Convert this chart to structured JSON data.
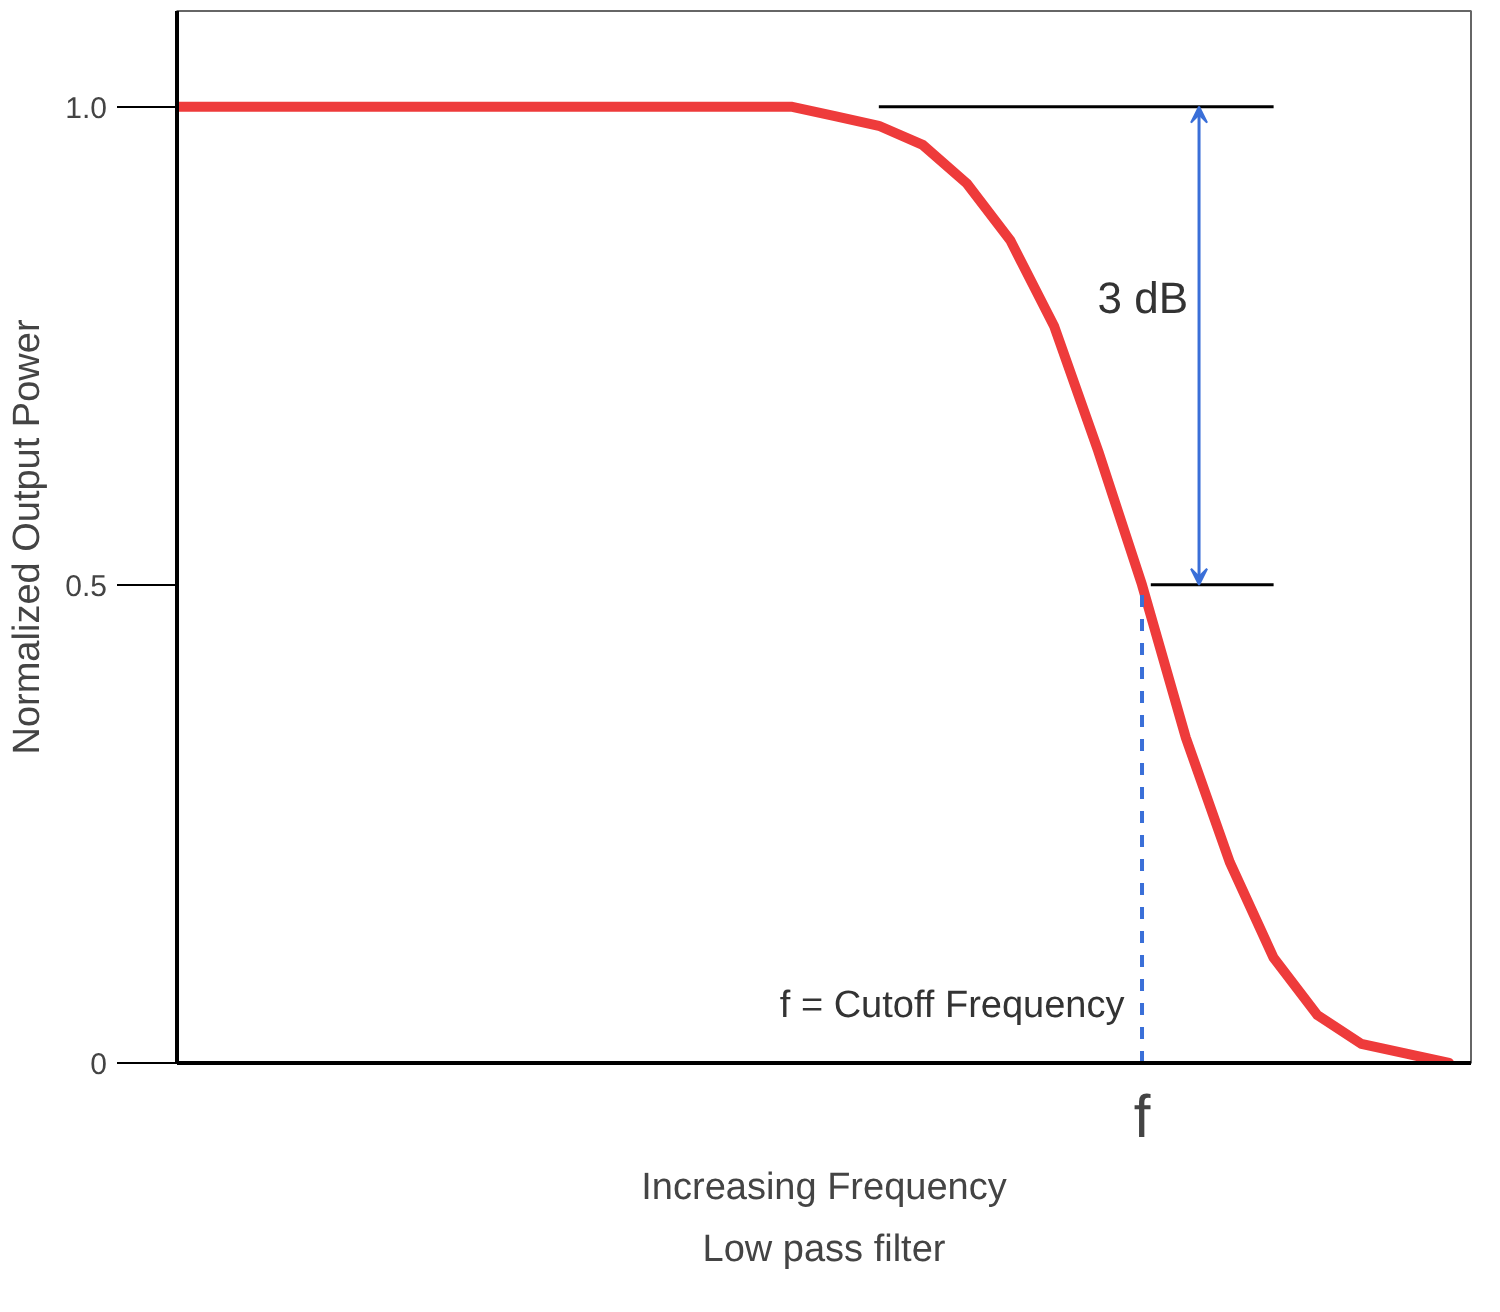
{
  "chart_data": {
    "type": "line",
    "title": "Low pass filter",
    "xlabel": "Increasing Frequency",
    "ylabel": "Normalized Output Power",
    "categories": [
      null,
      null,
      null,
      null,
      null,
      null,
      null,
      null,
      null,
      null,
      null,
      null,
      null,
      null,
      null,
      null,
      null,
      null,
      null,
      null,
      null,
      null,
      "f",
      null,
      null,
      null,
      null,
      null,
      null,
      null
    ],
    "series": [
      {
        "color": "#ee3b3b",
        "values": [
          1,
          1,
          1,
          1,
          1,
          1,
          1,
          1,
          1,
          1,
          1,
          1,
          1,
          1,
          1,
          0.99,
          0.98,
          0.96,
          0.92,
          0.86,
          0.77,
          0.64,
          0.5,
          0.34,
          0.21,
          0.11,
          0.05,
          0.02,
          0.01,
          0
        ]
      }
    ],
    "ylim": [
      0,
      1.1
    ],
    "yticks": [
      0,
      0.5,
      {
        "value": 1,
        "label": "1.0"
      }
    ],
    "ref_lines": [
      {
        "axis": "y",
        "value": 1,
        "color": "#000000"
      },
      {
        "axis": "y",
        "value": 0.5,
        "color": "#000000"
      },
      {
        "axis": "x",
        "value": "f",
        "color": "#3a6fd8",
        "line_style": "dashed"
      }
    ],
    "annotations": [
      "3 dB",
      "f = Cutoff Frequency"
    ],
    "grid": false,
    "marker": "none",
    "line_style": "solid"
  }
}
